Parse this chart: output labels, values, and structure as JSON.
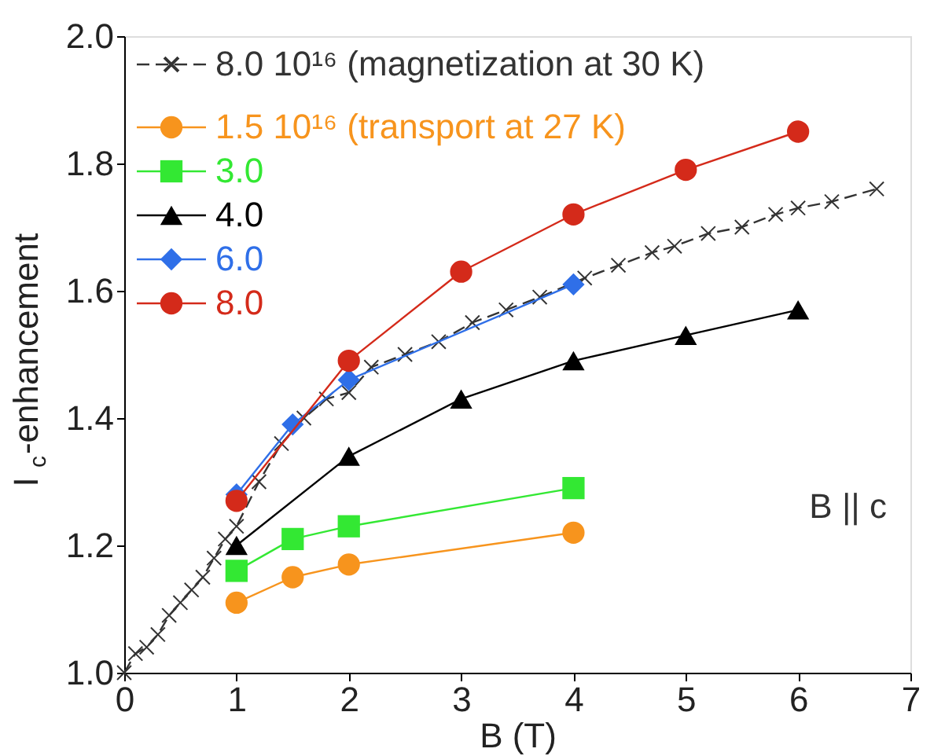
{
  "chart_data": {
    "type": "line",
    "xlabel": "B (T)",
    "ylabel": "I$_{c}$-enhancement",
    "xlim": [
      0,
      7
    ],
    "ylim": [
      1.0,
      2.0
    ],
    "xticks": [
      0,
      1,
      2,
      3,
      4,
      5,
      6,
      7
    ],
    "yticks": [
      {
        "value": 1.0,
        "label": "1.0"
      },
      {
        "value": 1.2,
        "label": "1.2"
      },
      {
        "value": 1.4,
        "label": "1.4"
      },
      {
        "value": 1.6,
        "label": "1.6"
      },
      {
        "value": 1.8,
        "label": "1.8"
      },
      {
        "value": 2.0,
        "label": "2.0"
      }
    ],
    "grid": false,
    "legend": "top left",
    "annotations": [
      "B || c"
    ],
    "series": [
      {
        "name": "8.0 10¹⁶ (magnetization at 30 K)",
        "color": "#333333",
        "marker": "cross",
        "line_style": "dashed",
        "x": [
          0,
          0.1,
          0.2,
          0.3,
          0.4,
          0.5,
          0.6,
          0.7,
          0.8,
          0.9,
          1.0,
          1.2,
          1.4,
          1.6,
          1.8,
          2.0,
          2.2,
          2.5,
          2.8,
          3.1,
          3.4,
          3.7,
          4.1,
          4.4,
          4.7,
          4.9,
          5.2,
          5.5,
          5.8,
          6.0,
          6.3,
          6.7
        ],
        "values": [
          1.0,
          1.03,
          1.04,
          1.06,
          1.09,
          1.11,
          1.13,
          1.15,
          1.18,
          1.21,
          1.23,
          1.3,
          1.36,
          1.4,
          1.43,
          1.44,
          1.48,
          1.5,
          1.52,
          1.55,
          1.57,
          1.59,
          1.62,
          1.64,
          1.66,
          1.67,
          1.69,
          1.7,
          1.72,
          1.73,
          1.74,
          1.76
        ]
      },
      {
        "name": "1.5 10¹⁶ (transport at 27 K)",
        "color": "#f7941d",
        "marker": "circle",
        "line_style": "solid",
        "x": [
          1,
          1.5,
          2,
          4
        ],
        "values": [
          1.11,
          1.15,
          1.17,
          1.22
        ]
      },
      {
        "name": "3.0",
        "color": "#33e833",
        "marker": "square",
        "line_style": "solid",
        "x": [
          1,
          1.5,
          2,
          4
        ],
        "values": [
          1.16,
          1.21,
          1.23,
          1.29
        ]
      },
      {
        "name": "4.0",
        "color": "#000000",
        "marker": "triangle",
        "line_style": "solid",
        "x": [
          1,
          2,
          3,
          4,
          5,
          6
        ],
        "values": [
          1.2,
          1.34,
          1.43,
          1.49,
          1.53,
          1.57
        ]
      },
      {
        "name": "6.0",
        "color": "#2f6fe8",
        "marker": "diamond",
        "line_style": "solid",
        "x": [
          1,
          1.5,
          2,
          4
        ],
        "values": [
          1.28,
          1.39,
          1.46,
          1.61
        ]
      },
      {
        "name": "8.0",
        "color": "#d42a1a",
        "marker": "circle",
        "line_style": "solid",
        "x": [
          1,
          2,
          3,
          4,
          5,
          6
        ],
        "values": [
          1.27,
          1.49,
          1.63,
          1.72,
          1.79,
          1.85
        ]
      }
    ]
  }
}
